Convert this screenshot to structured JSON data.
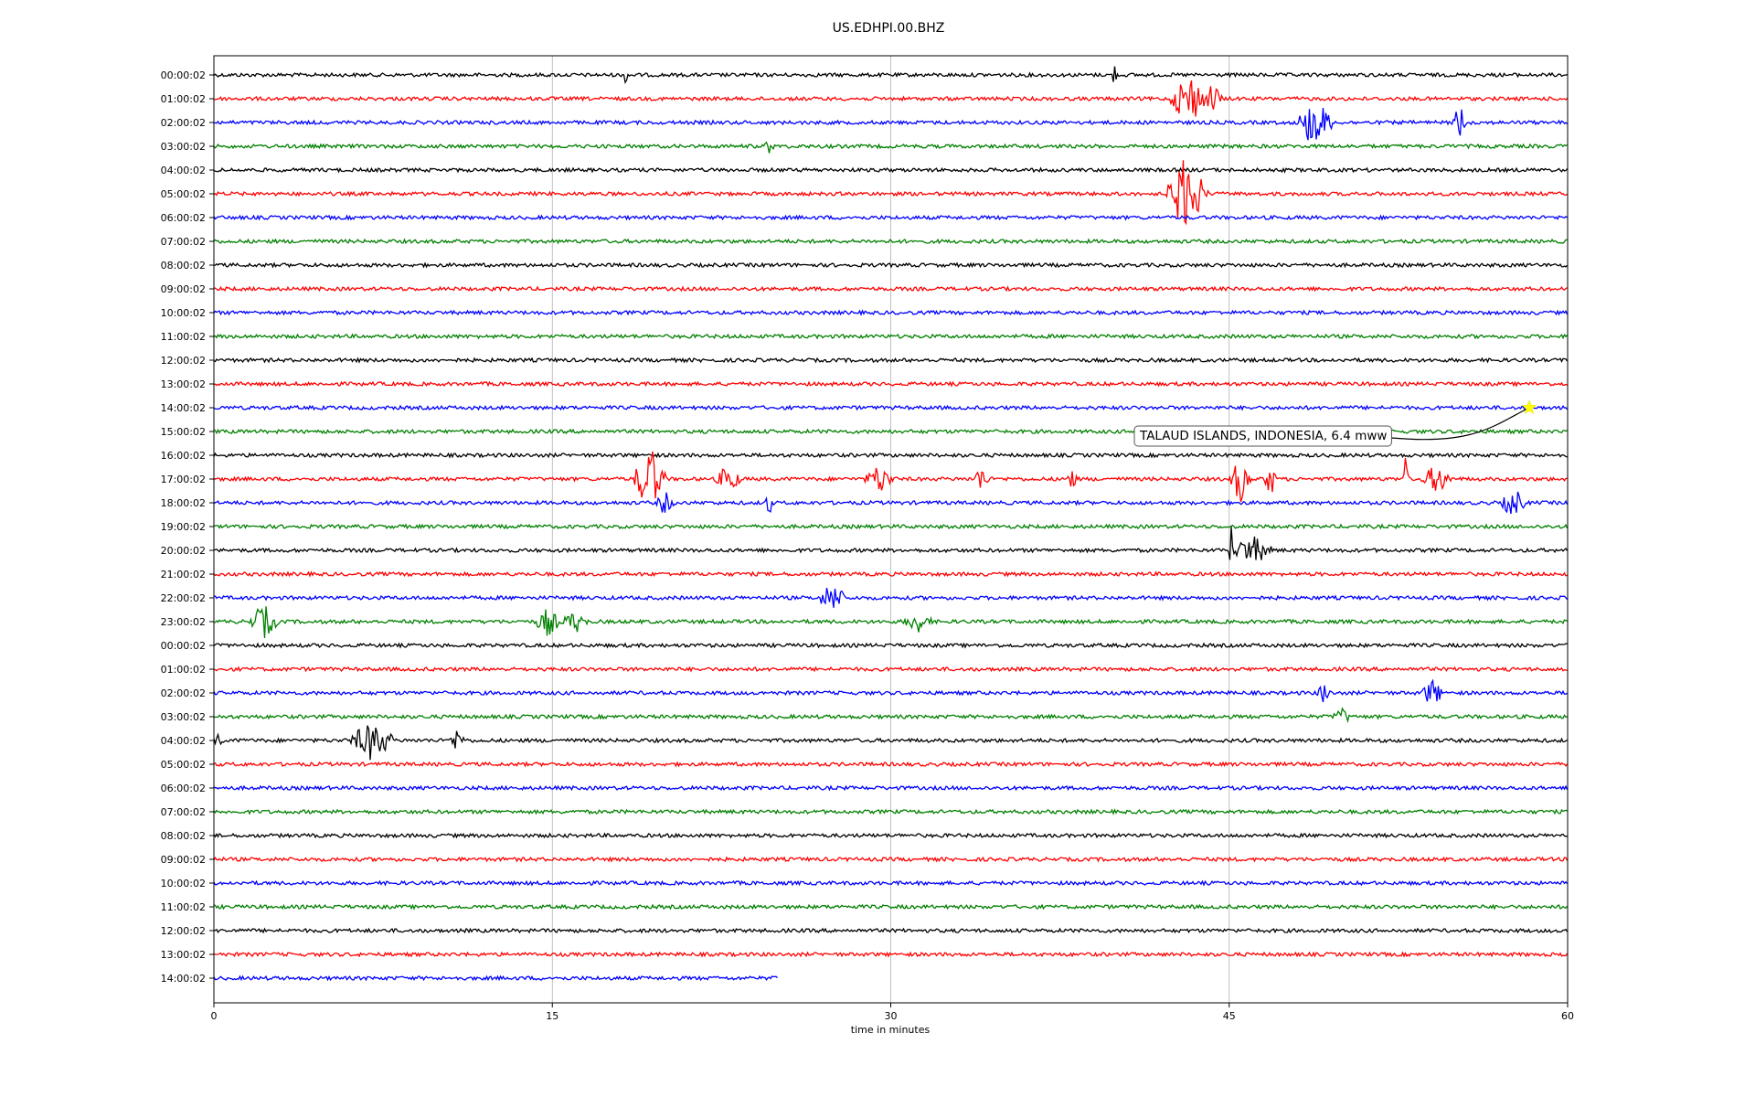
{
  "chart_data": {
    "type": "line",
    "title": "US.EDHPI.00.BHZ",
    "xlabel": "time in minutes",
    "ylabel": "",
    "xlim": [
      0,
      60
    ],
    "xticks": [
      "0",
      "15",
      "30",
      "45",
      "60"
    ],
    "xtick_values": [
      0,
      15,
      30,
      45,
      60
    ],
    "grid": "vertical lines at x ticks",
    "trace_colors": [
      "#000000",
      "#ff0000",
      "#0000ff",
      "#008000"
    ],
    "row_labels": [
      "00:00:02",
      "01:00:02",
      "02:00:02",
      "03:00:02",
      "04:00:02",
      "05:00:02",
      "06:00:02",
      "07:00:02",
      "08:00:02",
      "09:00:02",
      "10:00:02",
      "11:00:02",
      "12:00:02",
      "13:00:02",
      "14:00:02",
      "15:00:02",
      "16:00:02",
      "17:00:02",
      "18:00:02",
      "19:00:02",
      "20:00:02",
      "21:00:02",
      "22:00:02",
      "23:00:02",
      "00:00:02",
      "01:00:02",
      "02:00:02",
      "03:00:02",
      "04:00:02",
      "05:00:02",
      "06:00:02",
      "07:00:02",
      "08:00:02",
      "09:00:02",
      "10:00:02",
      "11:00:02",
      "12:00:02",
      "13:00:02",
      "14:00:02"
    ],
    "last_row_end_minute": 25,
    "bursts": [
      {
        "row": 0,
        "minute": 18.3,
        "amp": 1.2,
        "dur": 0.2
      },
      {
        "row": 0,
        "minute": 39.9,
        "amp": 1.0,
        "dur": 0.2
      },
      {
        "row": 1,
        "minute": 43.2,
        "amp": 2.2,
        "dur": 1.8
      },
      {
        "row": 1,
        "minute": 44.3,
        "amp": 1.4,
        "dur": 0.8
      },
      {
        "row": 2,
        "minute": 48.8,
        "amp": 2.0,
        "dur": 1.8
      },
      {
        "row": 2,
        "minute": 55.2,
        "amp": 1.8,
        "dur": 0.6
      },
      {
        "row": 3,
        "minute": 24.6,
        "amp": 0.5,
        "dur": 0.5
      },
      {
        "row": 5,
        "minute": 43.1,
        "amp": 3.2,
        "dur": 2.0
      },
      {
        "row": 17,
        "minute": 19.3,
        "amp": 2.8,
        "dur": 1.6
      },
      {
        "row": 17,
        "minute": 22.8,
        "amp": 1.2,
        "dur": 1.2
      },
      {
        "row": 17,
        "minute": 29.5,
        "amp": 1.2,
        "dur": 1.4
      },
      {
        "row": 17,
        "minute": 34.0,
        "amp": 1.0,
        "dur": 0.8
      },
      {
        "row": 17,
        "minute": 38.0,
        "amp": 0.8,
        "dur": 0.6
      },
      {
        "row": 17,
        "minute": 45.5,
        "amp": 2.0,
        "dur": 1.0
      },
      {
        "row": 17,
        "minute": 46.8,
        "amp": 1.6,
        "dur": 0.6
      },
      {
        "row": 17,
        "minute": 52.8,
        "amp": 2.0,
        "dur": 0.3
      },
      {
        "row": 17,
        "minute": 54.2,
        "amp": 1.2,
        "dur": 1.4
      },
      {
        "row": 18,
        "minute": 20.0,
        "amp": 1.0,
        "dur": 0.8
      },
      {
        "row": 18,
        "minute": 24.6,
        "amp": 1.0,
        "dur": 0.4
      },
      {
        "row": 18,
        "minute": 57.6,
        "amp": 1.2,
        "dur": 1.2
      },
      {
        "row": 20,
        "minute": 45.1,
        "amp": 2.6,
        "dur": 0.2
      },
      {
        "row": 20,
        "minute": 46.0,
        "amp": 1.2,
        "dur": 2.0
      },
      {
        "row": 22,
        "minute": 27.4,
        "amp": 1.2,
        "dur": 1.4
      },
      {
        "row": 23,
        "minute": 2.2,
        "amp": 1.4,
        "dur": 1.4
      },
      {
        "row": 23,
        "minute": 14.8,
        "amp": 1.2,
        "dur": 1.2
      },
      {
        "row": 23,
        "minute": 16.0,
        "amp": 0.9,
        "dur": 1.2
      },
      {
        "row": 23,
        "minute": 31.2,
        "amp": 0.8,
        "dur": 1.4
      },
      {
        "row": 26,
        "minute": 49.2,
        "amp": 1.0,
        "dur": 0.6
      },
      {
        "row": 26,
        "minute": 54.0,
        "amp": 1.2,
        "dur": 1.0
      },
      {
        "row": 27,
        "minute": 50.0,
        "amp": 0.6,
        "dur": 1.0
      },
      {
        "row": 28,
        "minute": 0.2,
        "amp": 0.8,
        "dur": 0.4
      },
      {
        "row": 28,
        "minute": 7.0,
        "amp": 1.6,
        "dur": 2.2
      },
      {
        "row": 28,
        "minute": 10.8,
        "amp": 0.9,
        "dur": 0.8
      }
    ],
    "annotation": {
      "text": "TALAUD ISLANDS, INDONESIA, 6.4 mww",
      "marker_row": 14,
      "marker_minute": 58.3,
      "marker_color": "#ffff00"
    }
  }
}
